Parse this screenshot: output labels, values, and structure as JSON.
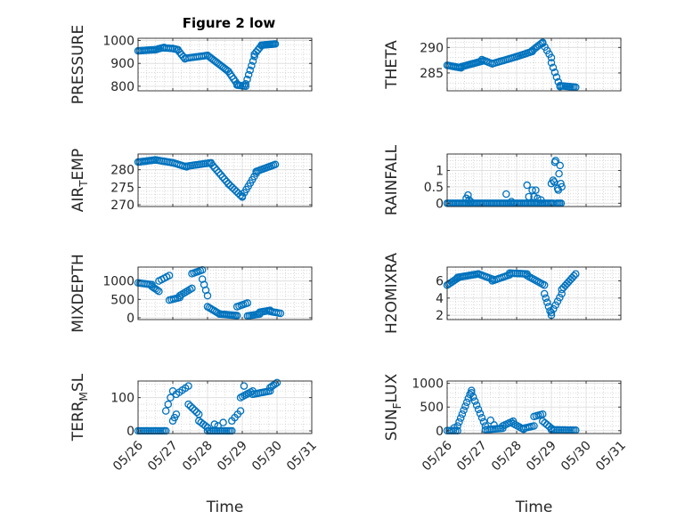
{
  "figure": {
    "title": "Figure 2 low"
  },
  "colors": {
    "marker": "#0072BD",
    "axis": "#262626",
    "grid": "#c8c8c8"
  },
  "chart_data": [
    {
      "type": "scatter",
      "id": "pressure",
      "title": "Figure 2 low",
      "ylabel": "PRESSURE",
      "xlabel": "",
      "ylim": [
        780,
        1010
      ],
      "yticks": [
        800,
        900,
        1000
      ],
      "x_ticks": [
        "05/26",
        "05/27",
        "05/28",
        "05/29",
        "05/30",
        "05/31"
      ],
      "xlim": [
        0,
        5
      ],
      "grid": true,
      "show_xticklabels": false,
      "segments": [
        {
          "t0": 0.0,
          "t1": 0.5,
          "v0": 955,
          "v1": 960,
          "n": 12
        },
        {
          "t0": 0.5,
          "t1": 0.75,
          "v0": 960,
          "v1": 970,
          "n": 6
        },
        {
          "t0": 0.75,
          "t1": 1.0,
          "v0": 968,
          "v1": 965,
          "n": 5
        },
        {
          "t0": 1.0,
          "t1": 1.15,
          "v0": 965,
          "v1": 960,
          "n": 4
        },
        {
          "t0": 1.15,
          "t1": 1.35,
          "v0": 958,
          "v1": 920,
          "n": 5
        },
        {
          "t0": 1.35,
          "t1": 2.0,
          "v0": 922,
          "v1": 935,
          "n": 12
        },
        {
          "t0": 2.0,
          "t1": 2.6,
          "v0": 935,
          "v1": 865,
          "n": 14
        },
        {
          "t0": 2.6,
          "t1": 2.85,
          "v0": 865,
          "v1": 810,
          "n": 6
        },
        {
          "t0": 2.85,
          "t1": 3.1,
          "v0": 805,
          "v1": 800,
          "n": 6
        },
        {
          "t0": 3.1,
          "t1": 3.35,
          "v0": 810,
          "v1": 930,
          "n": 7
        },
        {
          "t0": 3.35,
          "t1": 3.55,
          "v0": 940,
          "v1": 978,
          "n": 5
        },
        {
          "t0": 3.55,
          "t1": 3.95,
          "v0": 980,
          "v1": 985,
          "n": 12
        }
      ]
    },
    {
      "type": "scatter",
      "id": "theta",
      "ylabel": "THETA",
      "xlabel": "",
      "ylim": [
        281.5,
        291.8
      ],
      "yticks": [
        285,
        290
      ],
      "x_ticks": [
        "05/26",
        "05/27",
        "05/28",
        "05/29",
        "05/30",
        "05/31"
      ],
      "xlim": [
        0,
        5
      ],
      "grid": true,
      "show_xticklabels": false,
      "segments": [
        {
          "t0": 0.0,
          "t1": 0.4,
          "v0": 286.5,
          "v1": 286.0,
          "n": 10
        },
        {
          "t0": 0.4,
          "t1": 1.0,
          "v0": 286.2,
          "v1": 287.3,
          "n": 14
        },
        {
          "t0": 1.0,
          "t1": 1.3,
          "v0": 287.6,
          "v1": 286.8,
          "n": 6
        },
        {
          "t0": 1.3,
          "t1": 2.0,
          "v0": 286.8,
          "v1": 288.2,
          "n": 14
        },
        {
          "t0": 2.0,
          "t1": 2.45,
          "v0": 288.2,
          "v1": 289.2,
          "n": 10
        },
        {
          "t0": 2.45,
          "t1": 2.75,
          "v0": 289.4,
          "v1": 291.0,
          "n": 7
        },
        {
          "t0": 2.75,
          "t1": 3.0,
          "v0": 290.8,
          "v1": 288.0,
          "n": 5
        },
        {
          "t0": 3.0,
          "t1": 3.25,
          "v0": 287.0,
          "v1": 282.3,
          "n": 6
        },
        {
          "t0": 3.25,
          "t1": 3.7,
          "v0": 282.5,
          "v1": 282.2,
          "n": 10
        }
      ]
    },
    {
      "type": "scatter",
      "id": "air_temp",
      "ylabel": "AIR_TEMP",
      "xlabel": "",
      "ylim": [
        269.5,
        284.5
      ],
      "yticks": [
        270,
        275,
        280
      ],
      "x_ticks": [
        "05/26",
        "05/27",
        "05/28",
        "05/29",
        "05/30",
        "05/31"
      ],
      "xlim": [
        0,
        5
      ],
      "grid": true,
      "show_xticklabels": false,
      "segments": [
        {
          "t0": 0.0,
          "t1": 0.5,
          "v0": 282.2,
          "v1": 282.8,
          "n": 12
        },
        {
          "t0": 0.5,
          "t1": 1.0,
          "v0": 282.8,
          "v1": 282.0,
          "n": 10
        },
        {
          "t0": 1.0,
          "t1": 1.4,
          "v0": 282.0,
          "v1": 280.8,
          "n": 8
        },
        {
          "t0": 1.4,
          "t1": 2.1,
          "v0": 281.0,
          "v1": 282.0,
          "n": 14
        },
        {
          "t0": 2.1,
          "t1": 2.6,
          "v0": 281.8,
          "v1": 276.0,
          "n": 10
        },
        {
          "t0": 2.6,
          "t1": 3.0,
          "v0": 276.0,
          "v1": 272.2,
          "n": 8
        },
        {
          "t0": 3.0,
          "t1": 3.4,
          "v0": 272.5,
          "v1": 279.0,
          "n": 8
        },
        {
          "t0": 3.4,
          "t1": 3.95,
          "v0": 279.5,
          "v1": 281.5,
          "n": 12
        }
      ]
    },
    {
      "type": "scatter",
      "id": "rainfall",
      "ylabel": "RAINFALL",
      "xlabel": "",
      "ylim": [
        -0.1,
        1.5
      ],
      "yticks": [
        0,
        0.5,
        1
      ],
      "ytick_labels": [
        "0",
        "0.5",
        "1"
      ],
      "x_ticks": [
        "05/26",
        "05/27",
        "05/28",
        "05/29",
        "05/30",
        "05/31"
      ],
      "xlim": [
        0,
        5
      ],
      "grid": true,
      "show_xticklabels": false,
      "segments": [
        {
          "t0": 0.0,
          "t1": 3.05,
          "v0": 0,
          "v1": 0,
          "n": 70
        },
        {
          "t0": 3.15,
          "t1": 3.28,
          "v0": 0,
          "v1": 0,
          "n": 4
        }
      ],
      "points": [
        [
          0.55,
          0.15
        ],
        [
          0.6,
          0.25
        ],
        [
          0.63,
          0.1
        ],
        [
          0.68,
          0.05
        ],
        [
          1.7,
          0.28
        ],
        [
          1.85,
          0.05
        ],
        [
          2.3,
          0.55
        ],
        [
          2.35,
          0.2
        ],
        [
          2.45,
          0.4
        ],
        [
          2.55,
          0.4
        ],
        [
          2.5,
          0.2
        ],
        [
          2.6,
          0.15
        ],
        [
          2.7,
          0.1
        ],
        [
          3.0,
          0.6
        ],
        [
          3.05,
          0.7
        ],
        [
          3.08,
          0.65
        ],
        [
          3.1,
          1.25
        ],
        [
          3.12,
          1.3
        ],
        [
          3.18,
          0.45
        ],
        [
          3.2,
          0.4
        ],
        [
          3.22,
          0.9
        ],
        [
          3.25,
          1.15
        ],
        [
          3.27,
          0.6
        ],
        [
          3.3,
          0.5
        ]
      ]
    },
    {
      "type": "scatter",
      "id": "mixdepth",
      "ylabel": "MIXDEPTH",
      "xlabel": "",
      "ylim": [
        -50,
        1380
      ],
      "yticks": [
        0,
        500,
        1000
      ],
      "x_ticks": [
        "05/26",
        "05/27",
        "05/28",
        "05/29",
        "05/30",
        "05/31"
      ],
      "xlim": [
        0,
        5
      ],
      "grid": true,
      "show_xticklabels": false,
      "segments": [
        {
          "t0": 0.0,
          "t1": 0.4,
          "v0": 950,
          "v1": 900,
          "n": 8
        },
        {
          "t0": 0.4,
          "t1": 0.6,
          "v0": 850,
          "v1": 720,
          "n": 5
        },
        {
          "t0": 0.6,
          "t1": 0.9,
          "v0": 1000,
          "v1": 1150,
          "n": 5
        },
        {
          "t0": 0.9,
          "t1": 1.2,
          "v0": 480,
          "v1": 550,
          "n": 6
        },
        {
          "t0": 1.2,
          "t1": 1.55,
          "v0": 600,
          "v1": 800,
          "n": 7
        },
        {
          "t0": 1.55,
          "t1": 1.85,
          "v0": 1200,
          "v1": 1300,
          "n": 6
        },
        {
          "t0": 1.85,
          "t1": 2.0,
          "v0": 1050,
          "v1": 600,
          "n": 4
        },
        {
          "t0": 2.0,
          "t1": 2.35,
          "v0": 300,
          "v1": 100,
          "n": 8
        },
        {
          "t0": 2.35,
          "t1": 2.85,
          "v0": 100,
          "v1": 60,
          "n": 12
        },
        {
          "t0": 2.85,
          "t1": 3.15,
          "v0": 300,
          "v1": 400,
          "n": 6
        },
        {
          "t0": 3.15,
          "t1": 3.5,
          "v0": 50,
          "v1": 100,
          "n": 8
        },
        {
          "t0": 3.5,
          "t1": 3.8,
          "v0": 150,
          "v1": 200,
          "n": 7
        },
        {
          "t0": 3.8,
          "t1": 4.1,
          "v0": 170,
          "v1": 120,
          "n": 6
        }
      ]
    },
    {
      "type": "scatter",
      "id": "h2omixra",
      "ylabel": "H2OMIXRA",
      "xlabel": "",
      "ylim": [
        1.5,
        7.6
      ],
      "yticks": [
        2,
        4,
        6
      ],
      "x_ticks": [
        "05/26",
        "05/27",
        "05/28",
        "05/29",
        "05/30",
        "05/31"
      ],
      "xlim": [
        0,
        5
      ],
      "grid": true,
      "show_xticklabels": false,
      "segments": [
        {
          "t0": 0.0,
          "t1": 0.3,
          "v0": 5.5,
          "v1": 6.3,
          "n": 8
        },
        {
          "t0": 0.3,
          "t1": 0.9,
          "v0": 6.4,
          "v1": 6.8,
          "n": 14
        },
        {
          "t0": 0.9,
          "t1": 1.3,
          "v0": 6.8,
          "v1": 6.2,
          "n": 8
        },
        {
          "t0": 1.3,
          "t1": 1.8,
          "v0": 6.0,
          "v1": 6.7,
          "n": 10
        },
        {
          "t0": 1.8,
          "t1": 2.3,
          "v0": 6.9,
          "v1": 6.8,
          "n": 10
        },
        {
          "t0": 2.3,
          "t1": 2.8,
          "v0": 6.6,
          "v1": 5.5,
          "n": 10
        },
        {
          "t0": 2.8,
          "t1": 3.0,
          "v0": 4.5,
          "v1": 2.0,
          "n": 6
        },
        {
          "t0": 3.0,
          "t1": 3.3,
          "v0": 2.3,
          "v1": 4.5,
          "n": 6
        },
        {
          "t0": 3.3,
          "t1": 3.7,
          "v0": 5.0,
          "v1": 6.8,
          "n": 9
        }
      ]
    },
    {
      "type": "scatter",
      "id": "terr_msl",
      "ylabel": "TERR_MSL",
      "xlabel": "Time",
      "ylim": [
        -8,
        150
      ],
      "yticks": [
        0,
        100
      ],
      "x_ticks": [
        "05/26",
        "05/27",
        "05/28",
        "05/29",
        "05/30",
        "05/31"
      ],
      "xlim": [
        0,
        5
      ],
      "grid": true,
      "show_xticklabels": true,
      "segments": [
        {
          "t0": 0.0,
          "t1": 0.8,
          "v0": 0,
          "v1": 0,
          "n": 16
        },
        {
          "t0": 0.8,
          "t1": 1.0,
          "v0": 60,
          "v1": 120,
          "n": 4
        },
        {
          "t0": 1.0,
          "t1": 1.1,
          "v0": 30,
          "v1": 50,
          "n": 3
        },
        {
          "t0": 1.1,
          "t1": 1.45,
          "v0": 110,
          "v1": 135,
          "n": 5
        },
        {
          "t0": 1.45,
          "t1": 1.75,
          "v0": 80,
          "v1": 50,
          "n": 6
        },
        {
          "t0": 1.75,
          "t1": 2.0,
          "v0": 30,
          "v1": 10,
          "n": 5
        },
        {
          "t0": 2.0,
          "t1": 2.7,
          "v0": 0,
          "v1": 0,
          "n": 14
        },
        {
          "t0": 2.7,
          "t1": 2.95,
          "v0": 30,
          "v1": 60,
          "n": 4
        },
        {
          "t0": 2.95,
          "t1": 3.3,
          "v0": 100,
          "v1": 120,
          "n": 7
        },
        {
          "t0": 3.3,
          "t1": 3.8,
          "v0": 110,
          "v1": 120,
          "n": 10
        },
        {
          "t0": 3.8,
          "t1": 4.0,
          "v0": 130,
          "v1": 145,
          "n": 5
        }
      ],
      "points": [
        [
          2.2,
          20
        ],
        [
          2.3,
          15
        ],
        [
          2.45,
          25
        ],
        [
          3.05,
          135
        ]
      ]
    },
    {
      "type": "scatter",
      "id": "sun_flux",
      "ylabel": "SUN_FLUX",
      "xlabel": "Time",
      "ylim": [
        -60,
        1050
      ],
      "yticks": [
        0,
        500,
        1000
      ],
      "x_ticks": [
        "05/26",
        "05/27",
        "05/28",
        "05/29",
        "05/30",
        "05/31"
      ],
      "xlim": [
        0,
        5
      ],
      "grid": true,
      "show_xticklabels": true,
      "segments": [
        {
          "t0": 0.0,
          "t1": 0.3,
          "v0": 0,
          "v1": 0,
          "n": 6
        },
        {
          "t0": 0.3,
          "t1": 0.7,
          "v0": 100,
          "v1": 850,
          "n": 10
        },
        {
          "t0": 0.7,
          "t1": 1.1,
          "v0": 800,
          "v1": 100,
          "n": 9
        },
        {
          "t0": 1.1,
          "t1": 1.6,
          "v0": 20,
          "v1": 50,
          "n": 10
        },
        {
          "t0": 1.6,
          "t1": 1.9,
          "v0": 100,
          "v1": 200,
          "n": 6
        },
        {
          "t0": 1.9,
          "t1": 2.2,
          "v0": 150,
          "v1": 30,
          "n": 6
        },
        {
          "t0": 2.2,
          "t1": 2.5,
          "v0": 50,
          "v1": 100,
          "n": 6
        },
        {
          "t0": 2.5,
          "t1": 2.75,
          "v0": 300,
          "v1": 350,
          "n": 5
        },
        {
          "t0": 2.75,
          "t1": 3.0,
          "v0": 200,
          "v1": 50,
          "n": 5
        },
        {
          "t0": 3.0,
          "t1": 3.7,
          "v0": 20,
          "v1": 10,
          "n": 14
        }
      ],
      "points": [
        [
          0.2,
          60
        ],
        [
          1.25,
          220
        ],
        [
          1.35,
          120
        ]
      ]
    }
  ]
}
